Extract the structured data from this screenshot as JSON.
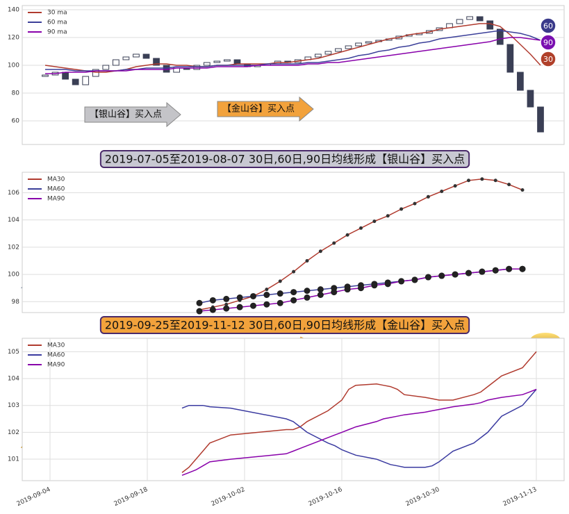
{
  "chart_data": [
    {
      "type": "candlestick",
      "grid": true,
      "legend": "upper left",
      "open": [
        92,
        93,
        95,
        90,
        86,
        92,
        97,
        100,
        104,
        106,
        108,
        105,
        100,
        95,
        98,
        97,
        100,
        102,
        103,
        104,
        101,
        99,
        100,
        101,
        103,
        102,
        104,
        106,
        108,
        110,
        112,
        114,
        116,
        117,
        118,
        119,
        121,
        122,
        123,
        125,
        127,
        130,
        133,
        135,
        132,
        126,
        115,
        95,
        82,
        70
      ],
      "close": [
        93,
        95,
        90,
        86,
        92,
        97,
        100,
        104,
        106,
        108,
        105,
        100,
        95,
        98,
        97,
        100,
        102,
        103,
        104,
        101,
        99,
        100,
        101,
        103,
        102,
        104,
        106,
        108,
        110,
        112,
        114,
        116,
        117,
        118,
        119,
        121,
        122,
        123,
        125,
        127,
        130,
        133,
        135,
        132,
        126,
        115,
        95,
        82,
        70,
        52
      ],
      "series": [
        {
          "name": "30 ma",
          "color": "#b03a2e",
          "values": [
            100,
            99,
            98,
            97,
            96,
            95,
            95,
            96,
            97,
            99,
            100,
            101,
            101,
            100,
            100,
            99,
            99,
            100,
            100,
            101,
            101,
            101,
            101,
            102,
            102,
            103,
            104,
            105,
            107,
            109,
            111,
            113,
            115,
            117,
            119,
            120,
            122,
            123,
            124,
            126,
            127,
            128,
            129,
            130,
            130,
            128,
            122,
            115,
            108,
            100
          ]
        },
        {
          "name": "60 ma",
          "color": "#3b3f99",
          "values": [
            97,
            97,
            97,
            96,
            96,
            96,
            96,
            96,
            97,
            97,
            98,
            98,
            98,
            99,
            99,
            99,
            99,
            100,
            100,
            100,
            100,
            100,
            101,
            101,
            101,
            101,
            102,
            102,
            103,
            104,
            105,
            107,
            108,
            110,
            111,
            113,
            114,
            116,
            117,
            119,
            120,
            121,
            122,
            123,
            124,
            125,
            124,
            123,
            121,
            118
          ]
        },
        {
          "name": "90 ma",
          "color": "#8800aa",
          "values": [
            94,
            94,
            95,
            95,
            95,
            96,
            96,
            96,
            96,
            97,
            97,
            97,
            97,
            98,
            98,
            98,
            98,
            99,
            99,
            99,
            99,
            100,
            100,
            100,
            100,
            100,
            101,
            101,
            102,
            102,
            103,
            104,
            105,
            106,
            107,
            108,
            109,
            110,
            111,
            112,
            113,
            114,
            115,
            116,
            117,
            119,
            120,
            120,
            119,
            118
          ]
        }
      ],
      "ylim": [
        43,
        143
      ],
      "yticks": [
        60,
        80,
        100,
        120,
        140
      ],
      "badges": [
        {
          "label": "60",
          "color": "#3a3a8a"
        },
        {
          "label": "90",
          "color": "#7a10b0"
        },
        {
          "label": "30",
          "color": "#b0402a"
        }
      ],
      "annotations": [
        {
          "text": "【银山谷】买入点",
          "color": "#c4c4c8"
        },
        {
          "text": "【金山谷】买入点",
          "color": "#f2a23c"
        }
      ]
    },
    {
      "type": "line",
      "title": "2019-07-05至2019-08-07 30日,60日,90日均线形成【银山谷】买入点",
      "title_color": "#c8c8d2",
      "markers": true,
      "grid": true,
      "legend": "upper left",
      "series": [
        {
          "name": "MA30",
          "color": "#b03a2e",
          "values": [
            97.4,
            97.6,
            97.8,
            98.1,
            98.4,
            98.9,
            99.5,
            100.2,
            101.0,
            101.7,
            102.3,
            102.9,
            103.4,
            103.9,
            104.3,
            104.8,
            105.2,
            105.7,
            106.1,
            106.5,
            106.9,
            107.0,
            106.9,
            106.6,
            106.2
          ]
        },
        {
          "name": "MA60",
          "color": "#3b3f99",
          "values": [
            97.9,
            98.1,
            98.2,
            98.3,
            98.4,
            98.5,
            98.6,
            98.7,
            98.8,
            98.9,
            99.0,
            99.1,
            99.2,
            99.3,
            99.4,
            99.5,
            99.6,
            99.8,
            99.9,
            100.0,
            100.1,
            100.2,
            100.3,
            100.4,
            100.4
          ]
        },
        {
          "name": "MA90",
          "color": "#8800aa",
          "values": [
            97.3,
            97.4,
            97.5,
            97.6,
            97.7,
            97.8,
            97.9,
            98.1,
            98.3,
            98.5,
            98.7,
            98.9,
            99.0,
            99.2,
            99.3,
            99.5,
            99.6,
            99.8,
            99.9,
            100.0,
            100.1,
            100.2,
            100.3,
            100.4,
            100.4
          ]
        }
      ],
      "ylim": [
        97.2,
        107.5
      ],
      "yticks": [
        98,
        100,
        102,
        104,
        106
      ]
    },
    {
      "type": "line",
      "title": "2019-09-25至2019-11-12 30日,60日,90日均线形成【金山谷】买入点",
      "title_color": "#f2a23c",
      "markers": false,
      "grid": true,
      "legend": "upper left",
      "x": [
        "2019-09-23",
        "2019-09-24",
        "2019-09-25",
        "2019-09-26",
        "2019-09-27",
        "2019-09-30",
        "2019-10-08",
        "2019-10-09",
        "2019-10-10",
        "2019-10-11",
        "2019-10-14",
        "2019-10-15",
        "2019-10-16",
        "2019-10-17",
        "2019-10-18",
        "2019-10-21",
        "2019-10-22",
        "2019-10-23",
        "2019-10-24",
        "2019-10-25",
        "2019-10-28",
        "2019-10-29",
        "2019-10-30",
        "2019-10-31",
        "2019-11-01",
        "2019-11-04",
        "2019-11-05",
        "2019-11-06",
        "2019-11-07",
        "2019-11-08",
        "2019-11-11",
        "2019-11-12",
        "2019-11-13"
      ],
      "series": [
        {
          "name": "MA30",
          "color": "#b03a2e",
          "values": [
            100.5,
            100.7,
            101.0,
            101.3,
            101.6,
            101.9,
            102.1,
            102.1,
            102.2,
            102.4,
            102.8,
            103.0,
            103.2,
            103.6,
            103.75,
            103.8,
            103.75,
            103.7,
            103.6,
            103.4,
            103.3,
            103.25,
            103.2,
            103.2,
            103.2,
            103.4,
            103.5,
            103.7,
            103.9,
            104.1,
            104.4,
            104.7,
            105.0
          ]
        },
        {
          "name": "MA60",
          "color": "#3a3aa0",
          "values": [
            102.9,
            103.0,
            103.0,
            103.0,
            102.95,
            102.9,
            102.5,
            102.4,
            102.2,
            102.0,
            101.6,
            101.5,
            101.35,
            101.25,
            101.15,
            101.0,
            100.9,
            100.8,
            100.75,
            100.7,
            100.7,
            100.75,
            100.9,
            101.1,
            101.3,
            101.6,
            101.8,
            102.0,
            102.3,
            102.6,
            103.0,
            103.3,
            103.6
          ]
        },
        {
          "name": "MA90",
          "color": "#8800aa",
          "values": [
            100.4,
            100.5,
            100.6,
            100.75,
            100.9,
            101.0,
            101.2,
            101.3,
            101.4,
            101.5,
            101.8,
            101.9,
            102.0,
            102.1,
            102.2,
            102.4,
            102.5,
            102.55,
            102.6,
            102.65,
            102.75,
            102.8,
            102.85,
            102.9,
            102.95,
            103.05,
            103.1,
            103.2,
            103.25,
            103.3,
            103.4,
            103.5,
            103.6
          ]
        }
      ],
      "xlim": [
        "2019-08-31",
        "2019-11-17"
      ],
      "xticks": [
        "2019-09-04",
        "2019-09-18",
        "2019-10-02",
        "2019-10-16",
        "2019-10-30",
        "2019-11-13"
      ],
      "ylim": [
        100.2,
        105.5
      ],
      "yticks": [
        101,
        102,
        103,
        104,
        105
      ]
    }
  ]
}
